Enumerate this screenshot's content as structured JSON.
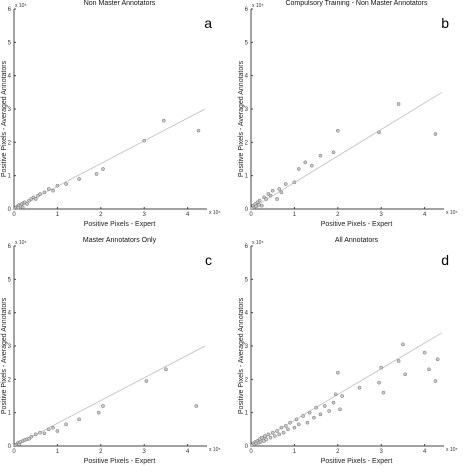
{
  "chart_data": [
    {
      "type": "scatter",
      "letter": "a",
      "title": "Non Master Annotators",
      "xlabel": "Positive Pixels - Expert",
      "ylabel": "Positive Pixels - Averaged Annotators",
      "x_exponent": "x 10⁵",
      "y_exponent": "x 10⁵",
      "xlim": [
        0,
        4.4
      ],
      "ylim": [
        0,
        6
      ],
      "xticks": [
        "0",
        "1",
        "2",
        "3",
        "4"
      ],
      "yticks": [
        "0",
        "1",
        "2",
        "3",
        "4",
        "5",
        "6"
      ],
      "fit_line": {
        "x": [
          0,
          4.4
        ],
        "y": [
          0,
          3.0
        ]
      },
      "points": [
        [
          0.02,
          0.02
        ],
        [
          0.05,
          0.05
        ],
        [
          0.08,
          0.08
        ],
        [
          0.1,
          0.04
        ],
        [
          0.12,
          0.12
        ],
        [
          0.15,
          0.1
        ],
        [
          0.18,
          0.15
        ],
        [
          0.2,
          0.05
        ],
        [
          0.22,
          0.18
        ],
        [
          0.25,
          0.2
        ],
        [
          0.3,
          0.15
        ],
        [
          0.35,
          0.25
        ],
        [
          0.4,
          0.3
        ],
        [
          0.45,
          0.35
        ],
        [
          0.5,
          0.3
        ],
        [
          0.55,
          0.4
        ],
        [
          0.6,
          0.45
        ],
        [
          0.7,
          0.5
        ],
        [
          0.8,
          0.6
        ],
        [
          0.9,
          0.55
        ],
        [
          1.0,
          0.7
        ],
        [
          1.2,
          0.75
        ],
        [
          1.5,
          0.9
        ],
        [
          1.9,
          1.05
        ],
        [
          2.05,
          1.2
        ],
        [
          3.0,
          2.05
        ],
        [
          3.45,
          2.65
        ],
        [
          4.25,
          2.35
        ]
      ]
    },
    {
      "type": "scatter",
      "letter": "b",
      "title": "Compulsory Training - Non Master Annotators",
      "xlabel": "Positive Pixels - Expert",
      "ylabel": "Positive Pixels - Averaged Annotators",
      "x_exponent": "x 10⁵",
      "y_exponent": "x 10⁵",
      "xlim": [
        0,
        4.4
      ],
      "ylim": [
        0,
        6
      ],
      "xticks": [
        "0",
        "1",
        "2",
        "3",
        "4"
      ],
      "yticks": [
        "0",
        "1",
        "2",
        "3",
        "4",
        "5",
        "6"
      ],
      "fit_line": {
        "x": [
          0,
          4.4
        ],
        "y": [
          0,
          3.5
        ]
      },
      "points": [
        [
          0.02,
          0.02
        ],
        [
          0.05,
          0.1
        ],
        [
          0.08,
          0.05
        ],
        [
          0.1,
          0.15
        ],
        [
          0.12,
          0.08
        ],
        [
          0.15,
          0.2
        ],
        [
          0.18,
          0.12
        ],
        [
          0.2,
          0.25
        ],
        [
          0.25,
          0.1
        ],
        [
          0.3,
          0.35
        ],
        [
          0.35,
          0.3
        ],
        [
          0.4,
          0.45
        ],
        [
          0.45,
          0.4
        ],
        [
          0.5,
          0.55
        ],
        [
          0.6,
          0.3
        ],
        [
          0.65,
          0.6
        ],
        [
          0.7,
          0.5
        ],
        [
          0.8,
          0.75
        ],
        [
          1.0,
          0.8
        ],
        [
          1.1,
          1.2
        ],
        [
          1.25,
          1.4
        ],
        [
          1.4,
          1.3
        ],
        [
          1.6,
          1.6
        ],
        [
          1.9,
          1.7
        ],
        [
          2.0,
          2.35
        ],
        [
          2.95,
          2.3
        ],
        [
          3.4,
          3.15
        ],
        [
          4.25,
          2.25
        ]
      ]
    },
    {
      "type": "scatter",
      "letter": "c",
      "title": "Master Annotators Only",
      "xlabel": "Positive Pixels - Expert",
      "ylabel": "Positive Pixels - Averaged Annotators",
      "x_exponent": "x 10⁵",
      "y_exponent": "x 10⁵",
      "xlim": [
        0,
        4.4
      ],
      "ylim": [
        0,
        6
      ],
      "xticks": [
        "0",
        "1",
        "2",
        "3",
        "4"
      ],
      "yticks": [
        "0",
        "1",
        "2",
        "3",
        "4",
        "5",
        "6"
      ],
      "fit_line": {
        "x": [
          0,
          4.4
        ],
        "y": [
          0,
          3.0
        ]
      },
      "points": [
        [
          0.02,
          0.02
        ],
        [
          0.05,
          0.04
        ],
        [
          0.08,
          0.06
        ],
        [
          0.1,
          0.1
        ],
        [
          0.12,
          0.05
        ],
        [
          0.15,
          0.12
        ],
        [
          0.2,
          0.15
        ],
        [
          0.25,
          0.18
        ],
        [
          0.3,
          0.2
        ],
        [
          0.35,
          0.22
        ],
        [
          0.4,
          0.28
        ],
        [
          0.5,
          0.35
        ],
        [
          0.6,
          0.4
        ],
        [
          0.7,
          0.38
        ],
        [
          0.8,
          0.5
        ],
        [
          0.9,
          0.55
        ],
        [
          1.0,
          0.45
        ],
        [
          1.2,
          0.65
        ],
        [
          1.5,
          0.8
        ],
        [
          1.95,
          1.0
        ],
        [
          2.05,
          1.2
        ],
        [
          3.05,
          1.95
        ],
        [
          3.5,
          2.3
        ],
        [
          4.2,
          1.2
        ]
      ]
    },
    {
      "type": "scatter",
      "letter": "d",
      "title": "All Annotators",
      "xlabel": "Positive Pixels - Expert",
      "ylabel": "Positive Pixels - Averaged Annotators",
      "x_exponent": "x 10⁵",
      "y_exponent": "x 10⁵",
      "xlim": [
        0,
        4.4
      ],
      "ylim": [
        0,
        6
      ],
      "xticks": [
        "0",
        "1",
        "2",
        "3",
        "4"
      ],
      "yticks": [
        "0",
        "1",
        "2",
        "3",
        "4",
        "5",
        "6"
      ],
      "fit_line": {
        "x": [
          0,
          4.4
        ],
        "y": [
          0,
          3.4
        ]
      },
      "points": [
        [
          0.02,
          0.02
        ],
        [
          0.05,
          0.08
        ],
        [
          0.08,
          0.05
        ],
        [
          0.1,
          0.12
        ],
        [
          0.12,
          0.08
        ],
        [
          0.15,
          0.15
        ],
        [
          0.18,
          0.1
        ],
        [
          0.2,
          0.2
        ],
        [
          0.22,
          0.12
        ],
        [
          0.25,
          0.25
        ],
        [
          0.3,
          0.15
        ],
        [
          0.32,
          0.3
        ],
        [
          0.35,
          0.2
        ],
        [
          0.4,
          0.35
        ],
        [
          0.45,
          0.25
        ],
        [
          0.5,
          0.4
        ],
        [
          0.55,
          0.3
        ],
        [
          0.6,
          0.45
        ],
        [
          0.65,
          0.35
        ],
        [
          0.7,
          0.55
        ],
        [
          0.75,
          0.4
        ],
        [
          0.8,
          0.6
        ],
        [
          0.85,
          0.5
        ],
        [
          0.9,
          0.7
        ],
        [
          1.0,
          0.55
        ],
        [
          1.05,
          0.8
        ],
        [
          1.1,
          0.65
        ],
        [
          1.2,
          0.9
        ],
        [
          1.3,
          0.7
        ],
        [
          1.35,
          1.0
        ],
        [
          1.45,
          0.85
        ],
        [
          1.5,
          1.15
        ],
        [
          1.6,
          0.95
        ],
        [
          1.7,
          1.2
        ],
        [
          1.8,
          1.05
        ],
        [
          1.9,
          1.3
        ],
        [
          1.95,
          1.55
        ],
        [
          2.0,
          2.2
        ],
        [
          2.05,
          1.1
        ],
        [
          2.1,
          1.5
        ],
        [
          2.5,
          1.75
        ],
        [
          2.95,
          1.9
        ],
        [
          3.0,
          2.35
        ],
        [
          3.05,
          1.6
        ],
        [
          3.4,
          2.55
        ],
        [
          3.5,
          3.05
        ],
        [
          3.55,
          2.15
        ],
        [
          4.0,
          2.8
        ],
        [
          4.1,
          2.3
        ],
        [
          4.25,
          1.95
        ],
        [
          4.3,
          2.6
        ]
      ]
    }
  ]
}
